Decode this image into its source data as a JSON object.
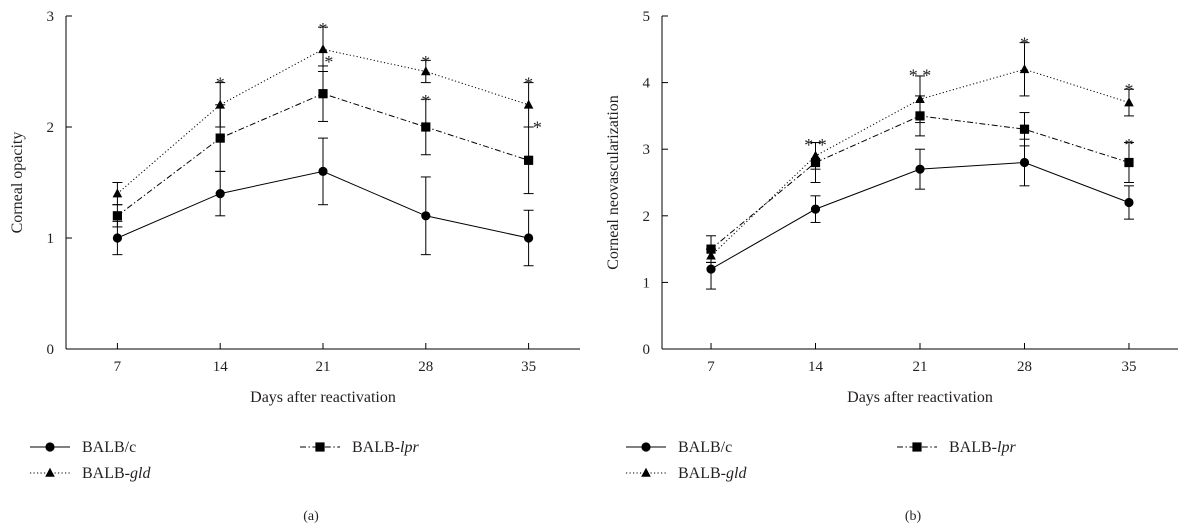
{
  "chart_data": [
    {
      "type": "line",
      "panel_label": "(a)",
      "xlabel": "Days after reactivation",
      "ylabel": "Corneal opacity",
      "x": [
        7,
        14,
        21,
        28,
        35
      ],
      "xticks": [
        "7",
        "14",
        "21",
        "28",
        "35"
      ],
      "ylim": [
        0,
        3
      ],
      "yticks": [
        "0",
        "1",
        "2",
        "3"
      ],
      "grid": false,
      "series": [
        {
          "name": "BALB/c",
          "italic": "",
          "marker": "circle",
          "line": "solid",
          "values": [
            1.0,
            1.4,
            1.6,
            1.2,
            1.0
          ],
          "errors": [
            0.15,
            0.2,
            0.3,
            0.35,
            0.25
          ]
        },
        {
          "name": "BALB-",
          "italic": "lpr",
          "marker": "square",
          "line": "dashdot",
          "values": [
            1.2,
            1.9,
            2.3,
            2.0,
            1.7
          ],
          "errors": [
            0.1,
            0.3,
            0.25,
            0.25,
            0.3
          ]
        },
        {
          "name": "BALB-",
          "italic": "gld",
          "marker": "triangle",
          "line": "dotted",
          "values": [
            1.4,
            2.2,
            2.7,
            2.5,
            2.2
          ],
          "errors": [
            0.1,
            0.2,
            0.2,
            0.1,
            0.2
          ]
        }
      ],
      "annotations": [
        {
          "text": "*",
          "x": 14,
          "y": 2.43
        },
        {
          "text": "*",
          "x": 21,
          "y": 2.92
        },
        {
          "text": "*",
          "x": 21.4,
          "y": 2.62
        },
        {
          "text": "*",
          "x": 28,
          "y": 2.62
        },
        {
          "text": "*",
          "x": 28,
          "y": 2.27
        },
        {
          "text": "*",
          "x": 35,
          "y": 2.43
        },
        {
          "text": "*",
          "x": 35.6,
          "y": 2.03
        }
      ]
    },
    {
      "type": "line",
      "panel_label": "(b)",
      "xlabel": "Days after reactivation",
      "ylabel": "Corneal neovascularization",
      "x": [
        7,
        14,
        21,
        28,
        35
      ],
      "xticks": [
        "7",
        "14",
        "21",
        "28",
        "35"
      ],
      "ylim": [
        0,
        5
      ],
      "yticks": [
        "0",
        "1",
        "2",
        "3",
        "4",
        "5"
      ],
      "grid": false,
      "series": [
        {
          "name": "BALB/c",
          "italic": "",
          "marker": "circle",
          "line": "solid",
          "values": [
            1.2,
            2.1,
            2.7,
            2.8,
            2.2
          ],
          "errors": [
            0.3,
            0.2,
            0.3,
            0.35,
            0.25
          ]
        },
        {
          "name": "BALB-",
          "italic": "lpr",
          "marker": "square",
          "line": "dashdot",
          "values": [
            1.5,
            2.8,
            3.5,
            3.3,
            2.8
          ],
          "errors": [
            0.2,
            0.3,
            0.3,
            0.25,
            0.3
          ]
        },
        {
          "name": "BALB-",
          "italic": "gld",
          "marker": "triangle",
          "line": "dotted",
          "values": [
            1.4,
            2.9,
            3.75,
            4.2,
            3.7
          ],
          "errors": [
            0.1,
            0.2,
            0.35,
            0.4,
            0.2
          ]
        }
      ],
      "annotations": [
        {
          "text": "* *",
          "x": 14,
          "y": 3.12
        },
        {
          "text": "* *",
          "x": 21,
          "y": 4.17
        },
        {
          "text": "*",
          "x": 28,
          "y": 4.65
        },
        {
          "text": "*",
          "x": 35,
          "y": 3.95
        },
        {
          "text": "*",
          "x": 35,
          "y": 3.12
        }
      ]
    }
  ]
}
